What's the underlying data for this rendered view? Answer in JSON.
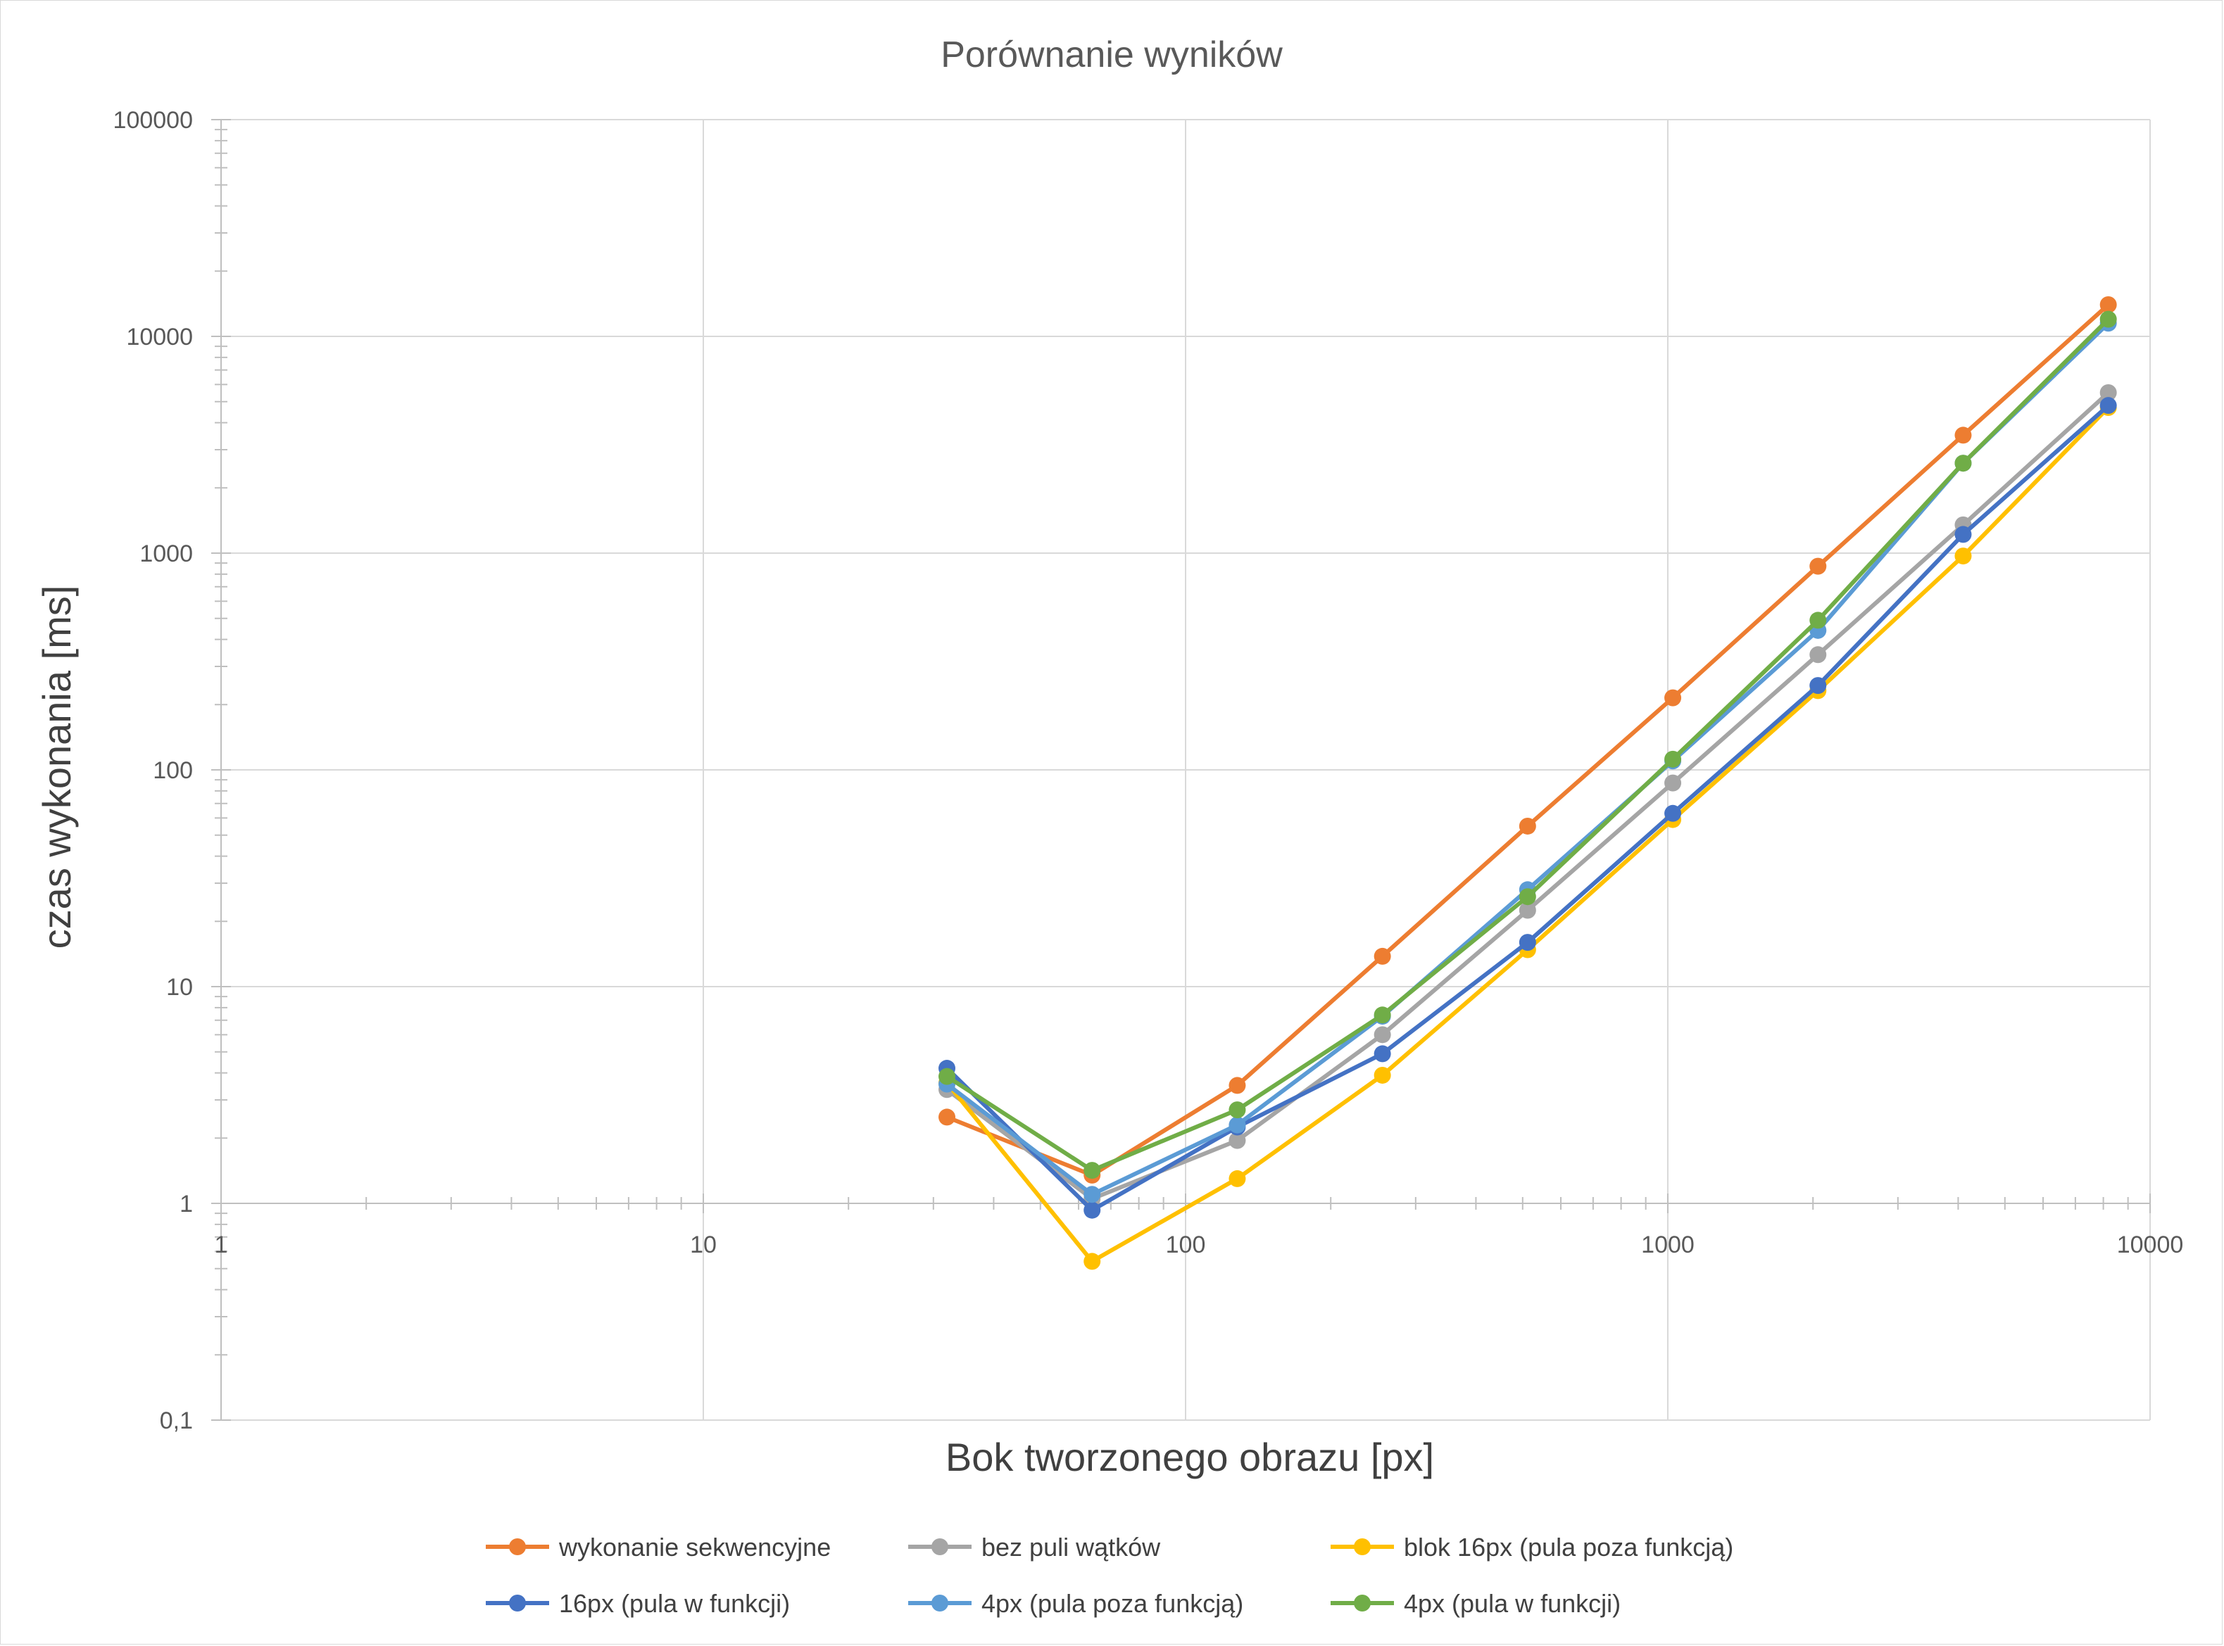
{
  "chart_data": {
    "type": "line",
    "title": "Porównanie wyników",
    "xlabel": "Bok tworzonego obrazu [px]",
    "ylabel": "czas wykonania [ms]",
    "xscale": "log",
    "yscale": "log",
    "xlim": [
      1,
      10000
    ],
    "ylim": [
      0.1,
      100000
    ],
    "x_tick_labels": [
      "1",
      "10",
      "100",
      "1000",
      "10000"
    ],
    "y_tick_labels": [
      "0,1",
      "1",
      "10",
      "100",
      "1000",
      "10000",
      "100000"
    ],
    "grid": true,
    "legend_position": "bottom",
    "x": [
      32,
      64,
      128,
      256,
      512,
      1024,
      2048,
      4096,
      8192
    ],
    "series": [
      {
        "name": "wykonanie sekwencyjne",
        "color": "#ED7D31",
        "values": [
          2.5,
          1.35,
          3.5,
          13.8,
          55,
          215,
          870,
          3500,
          14000
        ]
      },
      {
        "name": "bez puli wątków",
        "color": "#A5A5A5",
        "values": [
          3.35,
          1.05,
          1.95,
          6,
          22.5,
          87,
          340,
          1350,
          5500
        ]
      },
      {
        "name": "blok 16px (pula poza funkcją)",
        "color": "#FFC000",
        "values": [
          3.6,
          0.54,
          1.3,
          3.9,
          14.8,
          59,
          232,
          970,
          4700
        ]
      },
      {
        "name": "16px (pula w funkcji)",
        "color": "#4472C4",
        "values": [
          4.2,
          0.93,
          2.25,
          4.9,
          16,
          63,
          245,
          1220,
          4800
        ]
      },
      {
        "name": "4px (pula poza funkcją)",
        "color": "#5B9BD5",
        "values": [
          3.55,
          1.1,
          2.3,
          7.3,
          28,
          110,
          440,
          2600,
          11500
        ]
      },
      {
        "name": "4px (pula w funkcji)",
        "color": "#70AD47",
        "values": [
          3.85,
          1.42,
          2.7,
          7.4,
          26,
          112,
          490,
          2600,
          12000
        ]
      }
    ]
  }
}
